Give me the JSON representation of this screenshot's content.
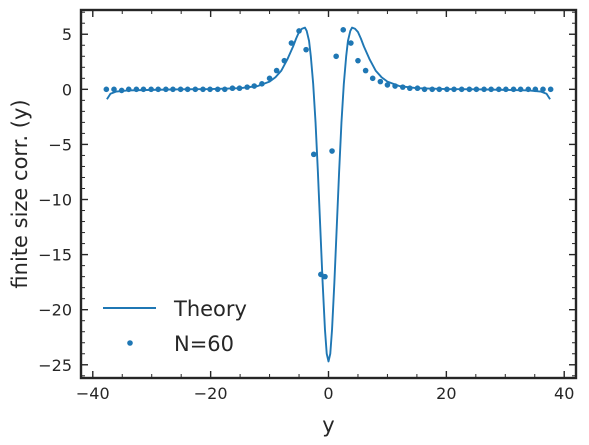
{
  "chart_data": {
    "type": "line",
    "title": "",
    "xlabel": "y",
    "ylabel": "finite size corr. (y)",
    "xlim": [
      -42,
      42
    ],
    "ylim": [
      -26.2,
      7.2
    ],
    "xticks": [
      -40,
      -20,
      0,
      20,
      40
    ],
    "xtick_labels": [
      "−40",
      "−20",
      "0",
      "20",
      "40"
    ],
    "yticks": [
      5,
      0,
      -5,
      -10,
      -15,
      -20,
      -25
    ],
    "ytick_labels": [
      "5",
      "0",
      "−5",
      "−10",
      "−15",
      "−20",
      "−25"
    ],
    "grid": false,
    "legend_position": "lower-left",
    "color": "#1f77b4",
    "series": [
      {
        "name": "Theory",
        "kind": "line",
        "x": [
          -37.6,
          -37.0,
          -36.0,
          -34.0,
          -30.0,
          -25.0,
          -20.0,
          -15.0,
          -12.0,
          -10.0,
          -9.0,
          -8.0,
          -7.0,
          -6.0,
          -5.5,
          -5.0,
          -4.5,
          -4.0,
          -3.7,
          -3.3,
          -3.0,
          -2.6,
          -2.2,
          -1.8,
          -1.4,
          -1.0,
          -0.6,
          -0.3,
          0.0,
          0.3,
          0.6,
          1.0,
          1.4,
          1.8,
          2.2,
          2.6,
          3.0,
          3.3,
          3.7,
          4.0,
          4.5,
          5.0,
          5.5,
          6.0,
          7.0,
          8.0,
          9.0,
          10.0,
          12.0,
          15.0,
          20.0,
          25.0,
          30.0,
          34.0,
          36.0,
          37.0,
          37.6
        ],
        "y": [
          -0.9,
          -0.4,
          -0.2,
          -0.1,
          -0.05,
          0.0,
          0.02,
          0.1,
          0.3,
          0.7,
          1.1,
          1.7,
          2.7,
          3.9,
          4.6,
          5.2,
          5.5,
          5.6,
          5.3,
          4.4,
          3.0,
          0.5,
          -3.0,
          -7.5,
          -12.5,
          -17.5,
          -21.8,
          -24.0,
          -24.7,
          -24.0,
          -21.8,
          -17.5,
          -12.5,
          -7.5,
          -3.0,
          0.5,
          3.0,
          4.4,
          5.3,
          5.6,
          5.5,
          5.2,
          4.6,
          3.9,
          2.7,
          1.7,
          1.1,
          0.7,
          0.3,
          0.1,
          0.02,
          0.0,
          -0.05,
          -0.1,
          -0.2,
          -0.4,
          -0.9
        ]
      },
      {
        "name": "N=60",
        "kind": "scatter",
        "x": [
          -37.7,
          -36.4,
          -35.1,
          -33.9,
          -32.6,
          -31.4,
          -30.1,
          -28.9,
          -27.6,
          -26.4,
          -25.1,
          -23.9,
          -22.6,
          -21.3,
          -20.1,
          -18.8,
          -17.6,
          -16.3,
          -15.1,
          -13.8,
          -12.6,
          -11.3,
          -10.0,
          -8.8,
          -7.5,
          -6.3,
          -5.0,
          -3.8,
          -2.5,
          -1.3,
          -0.6,
          0.6,
          1.3,
          2.5,
          3.8,
          5.0,
          6.3,
          7.5,
          8.8,
          10.0,
          11.3,
          12.6,
          13.8,
          15.1,
          16.3,
          17.6,
          18.8,
          20.1,
          21.3,
          22.6,
          23.9,
          25.1,
          26.4,
          27.6,
          28.9,
          30.1,
          31.4,
          32.6,
          33.9,
          35.1,
          36.4,
          37.7
        ],
        "y": [
          0.0,
          0.0,
          -0.1,
          0.0,
          0.0,
          0.0,
          0.0,
          0.0,
          0.0,
          0.0,
          0.0,
          0.0,
          0.0,
          0.0,
          0.0,
          0.0,
          0.0,
          0.1,
          0.1,
          0.2,
          0.3,
          0.5,
          1.0,
          1.7,
          2.6,
          4.2,
          5.3,
          3.6,
          -5.9,
          -16.8,
          -17.0,
          -5.6,
          3.0,
          5.4,
          4.2,
          2.6,
          1.7,
          1.0,
          0.7,
          0.4,
          0.3,
          0.2,
          0.1,
          0.1,
          0.0,
          0.0,
          0.0,
          0.0,
          0.0,
          0.0,
          0.0,
          0.0,
          0.0,
          0.0,
          0.0,
          0.0,
          0.0,
          0.0,
          0.0,
          0.0,
          0.0,
          0.0
        ]
      }
    ]
  }
}
